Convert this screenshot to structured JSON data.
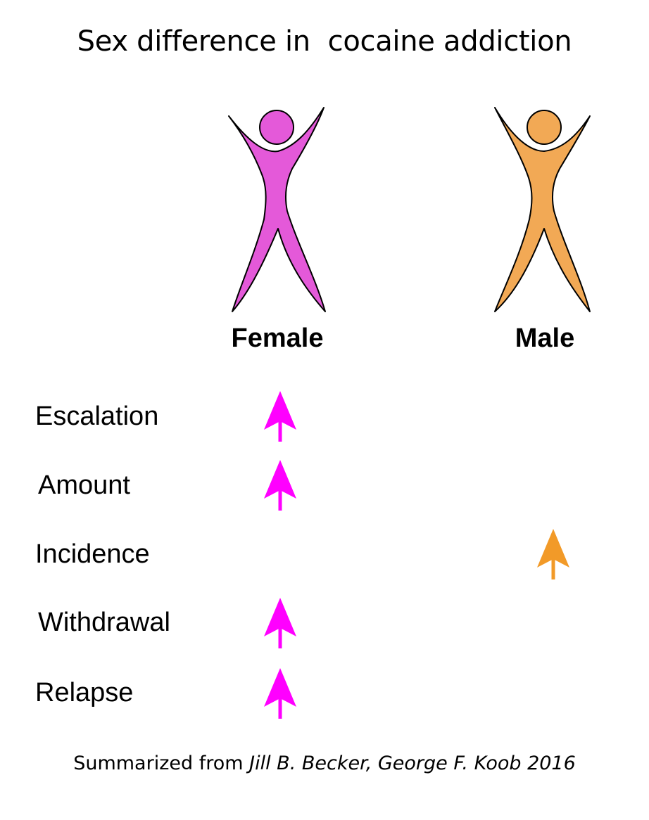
{
  "title": "Sex difference in  cocaine addiction",
  "columns": [
    {
      "label": "Female",
      "color": "#e459d9",
      "arrow_color": "#ff00ff"
    },
    {
      "label": "Male",
      "color": "#f2a955",
      "arrow_color": "#f29a28"
    }
  ],
  "rows": [
    {
      "label": "Escalation",
      "increase": "Female"
    },
    {
      "label": "Amount",
      "increase": "Female"
    },
    {
      "label": "Incidence",
      "increase": "Male"
    },
    {
      "label": "Withdrawal",
      "increase": "Female"
    },
    {
      "label": "Relapse",
      "increase": "Female"
    }
  ],
  "footer": {
    "prefix": "Summarized from ",
    "citation": "Jill B. Becker, George F. Koob 2016"
  }
}
